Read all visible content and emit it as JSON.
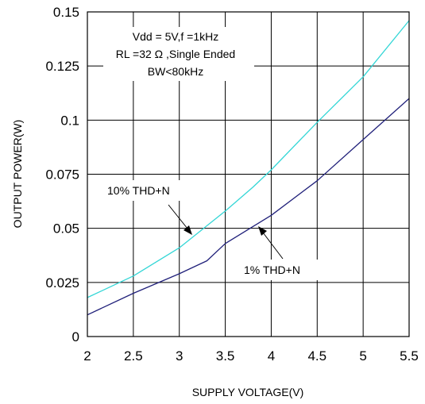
{
  "chart_data": {
    "type": "line",
    "title": "",
    "xlabel": "SUPPLY VOLTAGE(V)",
    "ylabel": "OUTPUT POWER(W)",
    "xlim": [
      2,
      5.5
    ],
    "ylim": [
      0,
      0.15
    ],
    "grid": true,
    "x_ticks": [
      "2",
      "2.5",
      "3",
      "3.5",
      "4",
      "4.5",
      "5",
      "5.5"
    ],
    "y_ticks": [
      "0",
      "0.025",
      "0.05",
      "0.075",
      "0.1",
      "0.125",
      "0.15"
    ],
    "conditions": [
      "Vdd = 5V,f =1kHz",
      "RL =32 Ω ,Single Ended",
      "BW<80kHz"
    ],
    "series": [
      {
        "name": "10% THD+N",
        "color": "#33d6d6",
        "x": [
          2.0,
          2.5,
          3.0,
          3.5,
          3.8,
          4.0,
          4.5,
          5.0,
          5.5
        ],
        "y": [
          0.018,
          0.028,
          0.041,
          0.058,
          0.069,
          0.077,
          0.099,
          0.12,
          0.146
        ]
      },
      {
        "name": "1% THD+N",
        "color": "#20207a",
        "x": [
          2.0,
          2.5,
          3.0,
          3.3,
          3.5,
          4.0,
          4.5,
          5.0,
          5.5
        ],
        "y": [
          0.01,
          0.02,
          0.029,
          0.035,
          0.043,
          0.056,
          0.072,
          0.091,
          0.11
        ]
      }
    ],
    "annotations": [
      {
        "text": "10% THD+N",
        "series": "10% THD+N",
        "x": 3.2,
        "y": 0.05
      },
      {
        "text": "1% THD+N",
        "series": "1% THD+N",
        "x": 3.85,
        "y": 0.052
      }
    ]
  }
}
